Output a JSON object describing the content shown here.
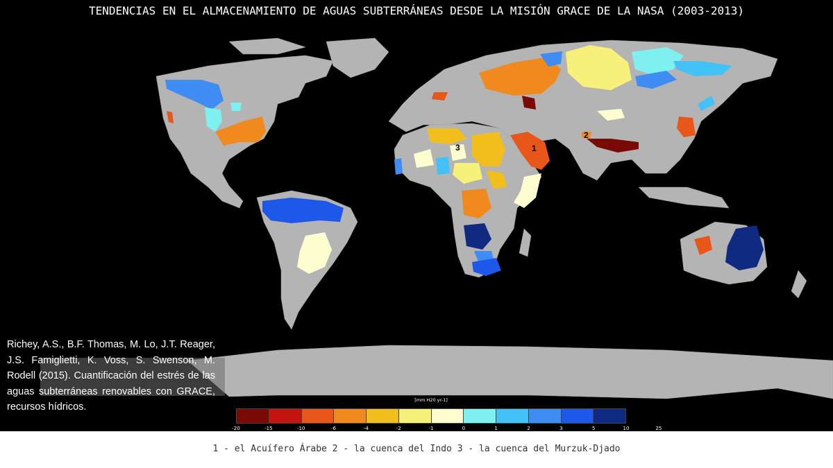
{
  "title": "TENDENCIAS EN EL ALMACENAMIENTO DE AGUAS SUBTERRÁNEAS DESDE LA MISIÓN GRACE DE LA NASA (2003-2013)",
  "citation": "Richey, A.S., B.F. Thomas, M. Lo, J.T. Reager, J.S. Famiglietti, K. Voss, S. Swenson, M. Rodell (2015). Cuantificación del estrés de las aguas subterráneas renovables con GRACE, recursos hídricos.",
  "legend": {
    "unit": "[mm H20 yr-1]",
    "ticks": [
      "-20",
      "-15",
      "-10",
      "-6",
      "-4",
      "-2",
      "-1",
      "0",
      "1",
      "2",
      "3",
      "5",
      "10",
      "25"
    ],
    "colors": [
      "#7a0a06",
      "#c4140f",
      "#e8561a",
      "#f08a1e",
      "#f2be1c",
      "#f7f07a",
      "#fdfdd0",
      "#7ef0ef",
      "#43c2f7",
      "#3f8cf2",
      "#1e58e8",
      "#0f2a80"
    ]
  },
  "markers": [
    "1",
    "2",
    "3"
  ],
  "footer": "1 - el Acuífero Árabe 2 - la cuenca del Indo 3 - la cuenca del Murzuk-Djado",
  "colors": {
    "land": "#b4b4b4",
    "ocean": "#000000"
  }
}
